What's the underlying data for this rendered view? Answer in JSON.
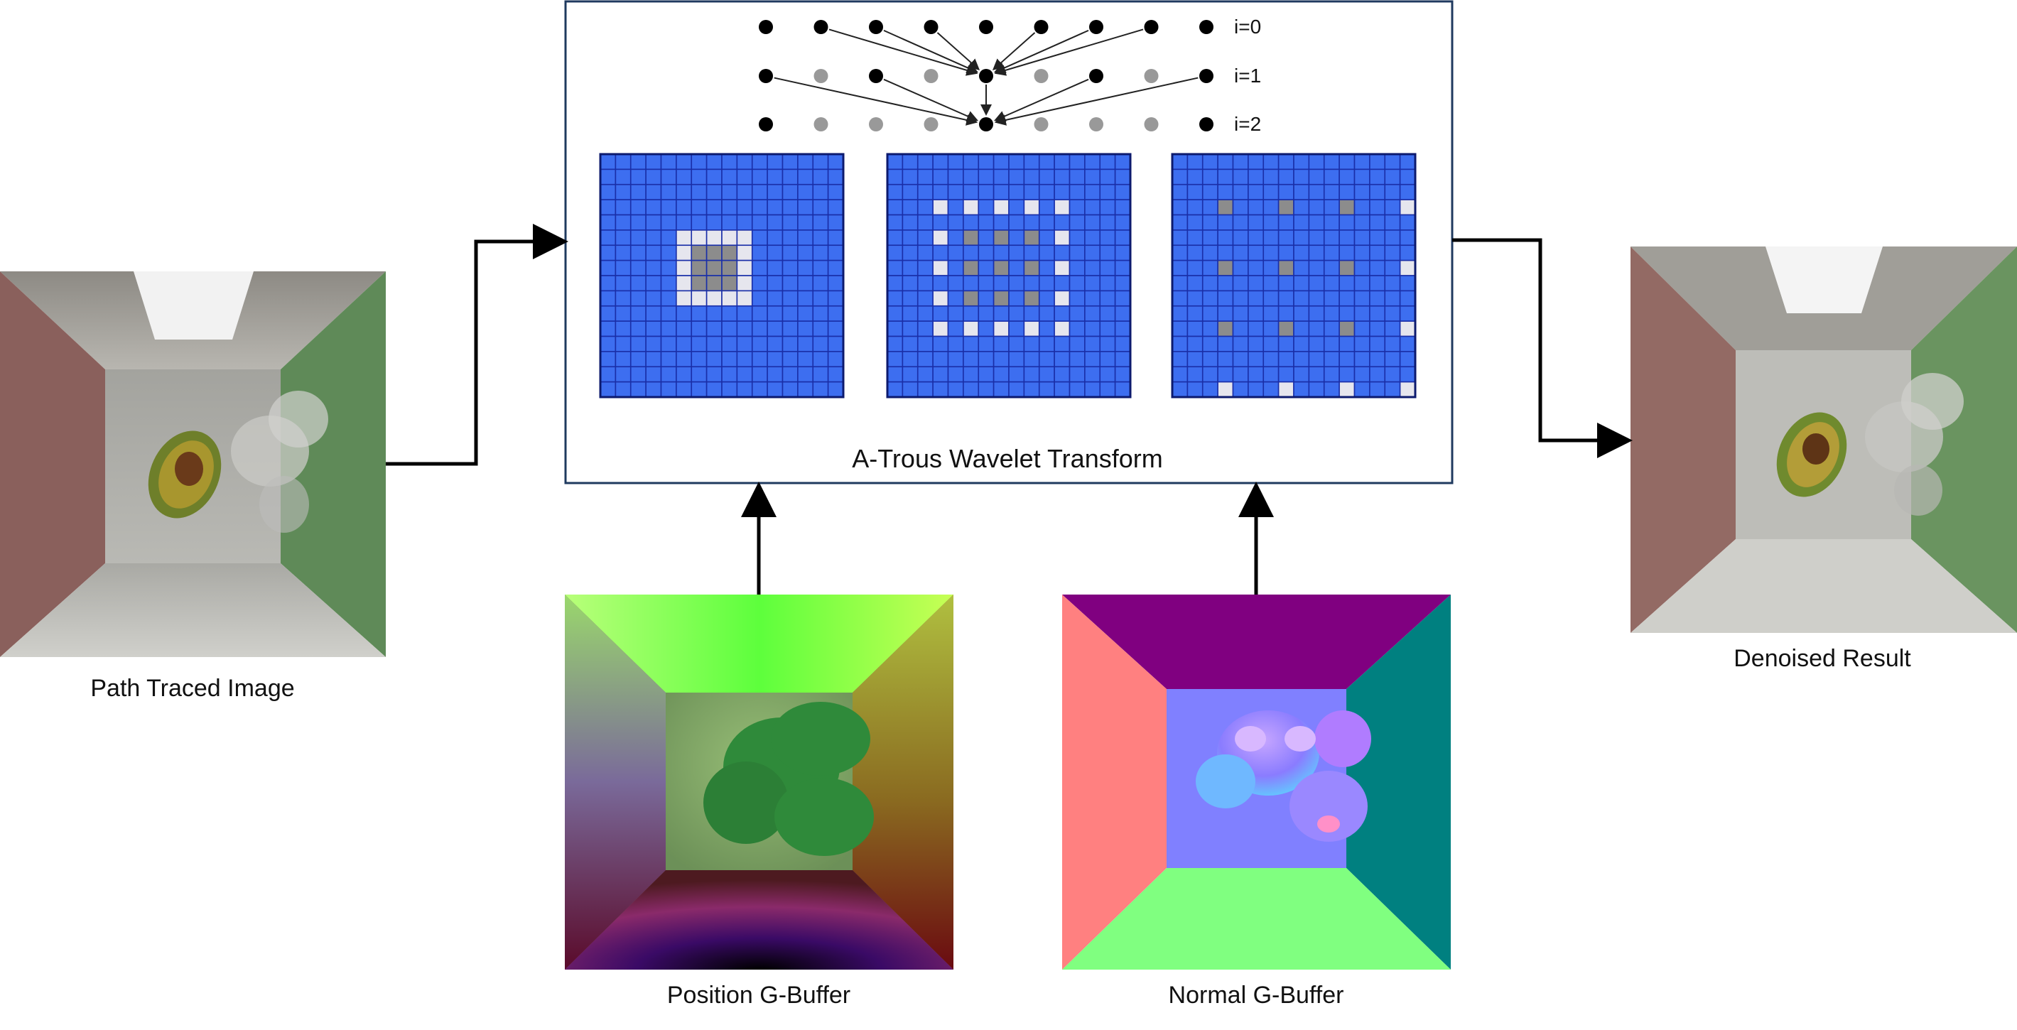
{
  "inputs": {
    "path_traced": {
      "label": "Path Traced Image"
    },
    "position_gbuffer": {
      "label": "Position G-Buffer"
    },
    "normal_gbuffer": {
      "label": "Normal G-Buffer"
    }
  },
  "transform": {
    "title": "A-Trous Wavelet Transform",
    "levels": [
      "i=0",
      "i=1",
      "i=2"
    ]
  },
  "output": {
    "label": "Denoised Result"
  },
  "colors": {
    "grid_blue": "#3d6ef0",
    "grid_line": "#1a2fa8",
    "cell_light": "#e6e6ee",
    "cell_dark": "#8c8c8c",
    "dot_black": "#000000",
    "dot_gray": "#999999"
  }
}
